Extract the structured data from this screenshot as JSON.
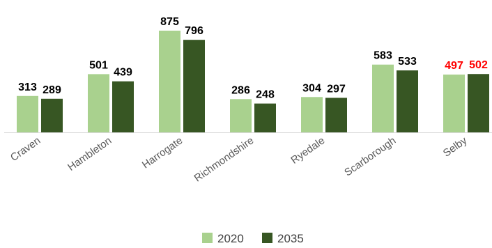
{
  "chart_data": {
    "type": "bar",
    "title": "",
    "xlabel": "",
    "ylabel": "",
    "ylim": [
      0,
      900
    ],
    "grid": false,
    "legend_position": "bottom",
    "categories": [
      "Craven",
      "Hambleton",
      "Harrogate",
      "Richmondshire",
      "Ryedale",
      "Scarborough",
      "Selby"
    ],
    "series": [
      {
        "name": "2020",
        "color": "#a9d18e",
        "values": [
          313,
          501,
          875,
          286,
          304,
          583,
          497
        ]
      },
      {
        "name": "2035",
        "color": "#375623",
        "values": [
          289,
          439,
          796,
          248,
          297,
          533,
          502
        ]
      }
    ],
    "highlight": {
      "category": "Selby",
      "color": "#ff0000"
    },
    "default_label_color": "#000000",
    "default_category_color": "#595959",
    "axis_color": "#d9d9d9"
  }
}
